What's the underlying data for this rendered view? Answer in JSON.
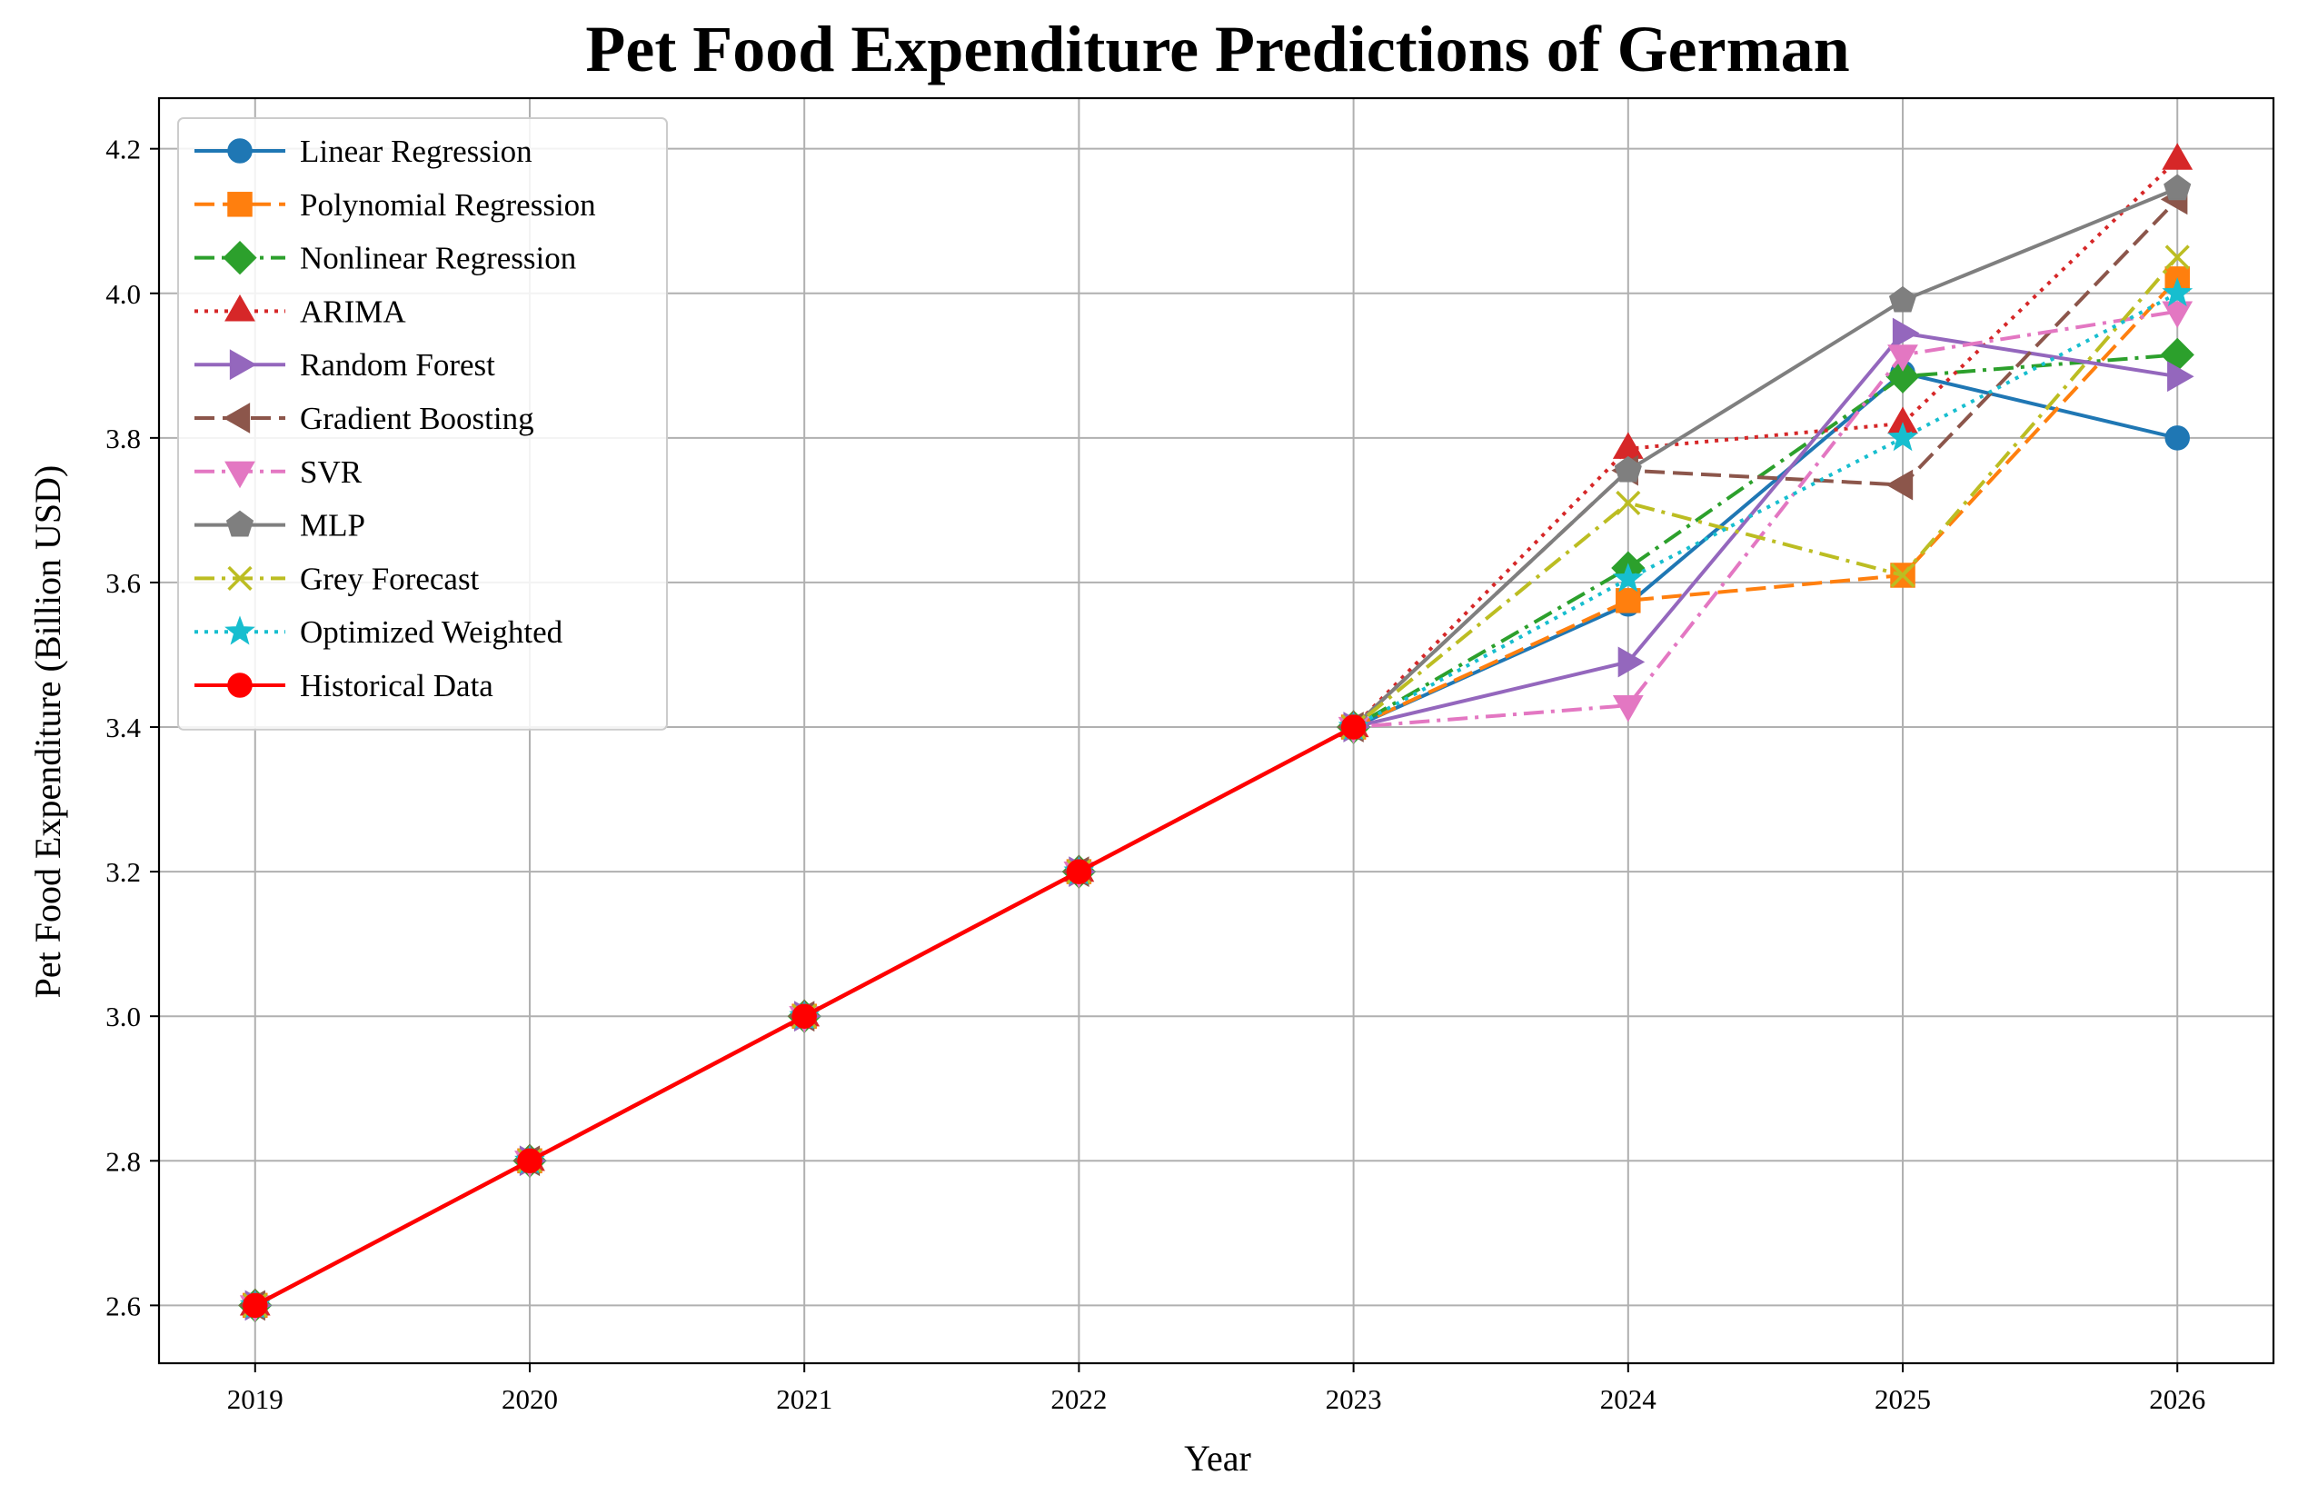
{
  "chart_data": {
    "type": "line",
    "title": "Pet Food Expenditure Predictions of German",
    "xlabel": "Year",
    "ylabel": "Pet Food Expenditure (Billion USD)",
    "x": [
      2019,
      2020,
      2021,
      2022,
      2023,
      2024,
      2025,
      2026
    ],
    "x_ticks": [
      "2019",
      "2020",
      "2021",
      "2022",
      "2023",
      "2024",
      "2025",
      "2026"
    ],
    "y_ticks": [
      "2.6",
      "2.8",
      "3.0",
      "3.2",
      "3.4",
      "3.6",
      "3.8",
      "4.0",
      "4.2"
    ],
    "xlim": [
      2018.65,
      2026.35
    ],
    "ylim": [
      2.52,
      4.27
    ],
    "grid": true,
    "legend_position": "upper left",
    "series": [
      {
        "name": "Linear Regression",
        "color": "#1f77b4",
        "dash": "solid",
        "marker": "circle",
        "x": [
          2019,
          2020,
          2021,
          2022,
          2023,
          2024,
          2025,
          2026
        ],
        "values": [
          2.6,
          2.8,
          3.0,
          3.2,
          3.4,
          3.57,
          3.89,
          3.8
        ]
      },
      {
        "name": "Polynomial Regression",
        "color": "#ff7f0e",
        "dash": "dashed",
        "marker": "square",
        "x": [
          2019,
          2020,
          2021,
          2022,
          2023,
          2024,
          2025,
          2026
        ],
        "values": [
          2.6,
          2.8,
          3.0,
          3.2,
          3.4,
          3.575,
          3.61,
          4.02
        ]
      },
      {
        "name": "Nonlinear Regression",
        "color": "#2ca02c",
        "dash": "dashdot",
        "marker": "diamond",
        "x": [
          2019,
          2020,
          2021,
          2022,
          2023,
          2024,
          2025,
          2026
        ],
        "values": [
          2.6,
          2.8,
          3.0,
          3.2,
          3.4,
          3.62,
          3.885,
          3.915
        ]
      },
      {
        "name": "ARIMA",
        "color": "#d62728",
        "dash": "dotted",
        "marker": "triangle-up",
        "x": [
          2019,
          2020,
          2021,
          2022,
          2023,
          2024,
          2025,
          2026
        ],
        "values": [
          2.6,
          2.8,
          3.0,
          3.2,
          3.4,
          3.785,
          3.82,
          4.185
        ]
      },
      {
        "name": "Random Forest",
        "color": "#9467bd",
        "dash": "solid",
        "marker": "triangle-right",
        "x": [
          2019,
          2020,
          2021,
          2022,
          2023,
          2024,
          2025,
          2026
        ],
        "values": [
          2.6,
          2.8,
          3.0,
          3.2,
          3.4,
          3.49,
          3.945,
          3.885
        ]
      },
      {
        "name": "Gradient Boosting",
        "color": "#8c564b",
        "dash": "dashed",
        "marker": "triangle-left",
        "x": [
          2019,
          2020,
          2021,
          2022,
          2023,
          2024,
          2025,
          2026
        ],
        "values": [
          2.6,
          2.8,
          3.0,
          3.2,
          3.4,
          3.755,
          3.735,
          4.13
        ]
      },
      {
        "name": "SVR",
        "color": "#e377c2",
        "dash": "dashdot",
        "marker": "triangle-down",
        "x": [
          2019,
          2020,
          2021,
          2022,
          2023,
          2024,
          2025,
          2026
        ],
        "values": [
          2.6,
          2.8,
          3.0,
          3.2,
          3.4,
          3.43,
          3.915,
          3.975
        ]
      },
      {
        "name": "MLP",
        "color": "#7f7f7f",
        "dash": "solid",
        "marker": "pentagon",
        "x": [
          2019,
          2020,
          2021,
          2022,
          2023,
          2024,
          2025,
          2026
        ],
        "values": [
          2.6,
          2.8,
          3.0,
          3.2,
          3.4,
          3.755,
          3.99,
          4.145
        ]
      },
      {
        "name": "Grey Forecast",
        "color": "#bcbd22",
        "dash": "dashdot",
        "marker": "x",
        "x": [
          2019,
          2020,
          2021,
          2022,
          2023,
          2024,
          2025,
          2026
        ],
        "values": [
          2.6,
          2.8,
          3.0,
          3.2,
          3.4,
          3.71,
          3.61,
          4.05
        ]
      },
      {
        "name": "Optimized Weighted",
        "color": "#17becf",
        "dash": "dotted",
        "marker": "star",
        "x": [
          2019,
          2020,
          2021,
          2022,
          2023,
          2024,
          2025,
          2026
        ],
        "values": [
          2.6,
          2.8,
          3.0,
          3.2,
          3.4,
          3.605,
          3.8,
          4.0
        ]
      },
      {
        "name": "Historical Data",
        "color": "#ff0000",
        "dash": "solid",
        "marker": "circle",
        "x": [
          2019,
          2020,
          2021,
          2022,
          2023
        ],
        "values": [
          2.6,
          2.8,
          3.0,
          3.2,
          3.4
        ]
      }
    ]
  }
}
